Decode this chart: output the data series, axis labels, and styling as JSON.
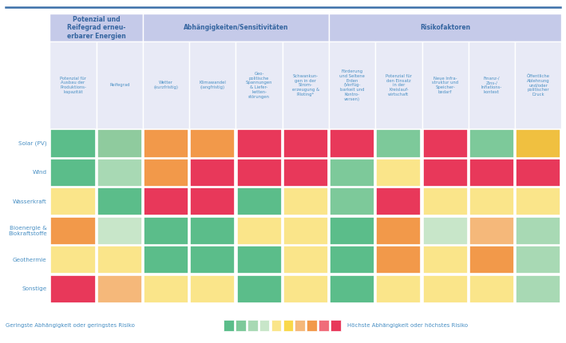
{
  "rows": [
    "Solar (PV)",
    "Wind",
    "Wasserkraft",
    "Bioenergie &\nBiokraftstoffe",
    "Geothermie",
    "Sonstige"
  ],
  "col_headers": [
    "Potenzial für\nAusbau der\nProduktions-\nkapazität",
    "Reifegrad",
    "Wetter\n(kurzfristig)",
    "Klimawandel\n(langfristig)",
    "Geo-\npolitische\nSpannungen\n& Liefer-\nketten-\nstörungen",
    "Schwankun-\ngen in der\nStrom-\nerzeugung &\nPiloting*",
    "Förderung\nund Seltene\nErden\n(Verfüg-\nbarkeit und\nKontro-\nversen)",
    "Potenzial für\nden Einsatz\nin der\nKreislauf-\nwirtschaft",
    "Neue Infra-\nstruktur und\nSpeicher-\nbedarf",
    "Finanz-/\nZins-/\nInflations-\nkontext",
    "Öffentliche\nAblehnung\nund/oder\npolitischer\nDruck"
  ],
  "group_headers": [
    {
      "label": "Potenzial und\nReifegrad erneu-\nerbarer Energien",
      "start": 0,
      "end": 2
    },
    {
      "label": "Abhängigkeiten/Sensitivitäten",
      "start": 2,
      "end": 6
    },
    {
      "label": "Risikofaktoren",
      "start": 6,
      "end": 11
    }
  ],
  "cell_colors": [
    [
      "#5BBD8A",
      "#8FCB9E",
      "#F2994A",
      "#F2994A",
      "#E8385A",
      "#E8385A",
      "#E8385A",
      "#7DC99A",
      "#E8385A",
      "#7DC99A",
      "#F0C040"
    ],
    [
      "#5BBD8A",
      "#A8D9B4",
      "#F2994A",
      "#E8385A",
      "#E8385A",
      "#E8385A",
      "#7DC99A",
      "#FAE58A",
      "#E8385A",
      "#E8385A",
      "#E8385A"
    ],
    [
      "#FAE58A",
      "#5BBD8A",
      "#E8385A",
      "#E8385A",
      "#5BBD8A",
      "#FAE58A",
      "#7DC99A",
      "#E8385A",
      "#FAE58A",
      "#FAE58A",
      "#FAE58A"
    ],
    [
      "#F2994A",
      "#C8E6C9",
      "#5BBD8A",
      "#5BBD8A",
      "#FAE58A",
      "#FAE58A",
      "#5BBD8A",
      "#F2994A",
      "#C8E6C9",
      "#F5B87A",
      "#A8D9B4"
    ],
    [
      "#FAE58A",
      "#FAE58A",
      "#5BBD8A",
      "#5BBD8A",
      "#5BBD8A",
      "#FAE58A",
      "#5BBD8A",
      "#F2994A",
      "#FAE58A",
      "#F2994A",
      "#A8D9B4"
    ],
    [
      "#E8385A",
      "#F5B87A",
      "#FAE58A",
      "#FAE58A",
      "#5BBD8A",
      "#FAE58A",
      "#5BBD8A",
      "#FAE58A",
      "#FAE58A",
      "#FAE58A",
      "#A8D9B4"
    ]
  ],
  "group_header_bg": "#C5CAE9",
  "col_header_bg": "#E8EAF6",
  "accent_color": "#4A90C4",
  "group_bold_color": "#3565A0",
  "legend_colors": [
    "#5BBD8A",
    "#7DC99A",
    "#A8D9B4",
    "#C8E6C9",
    "#FAE58A",
    "#F9D84A",
    "#F5B87A",
    "#F2994A",
    "#F06C7A",
    "#E8385A"
  ],
  "legend_left": "Geringste Abhängigkeit oder geringstes Risiko",
  "legend_right": "Höchste Abhängigkeit oder höchstes Risiko",
  "top_line_color": "#3A6FA8",
  "white": "#FFFFFF",
  "bg": "#FFFFFF"
}
